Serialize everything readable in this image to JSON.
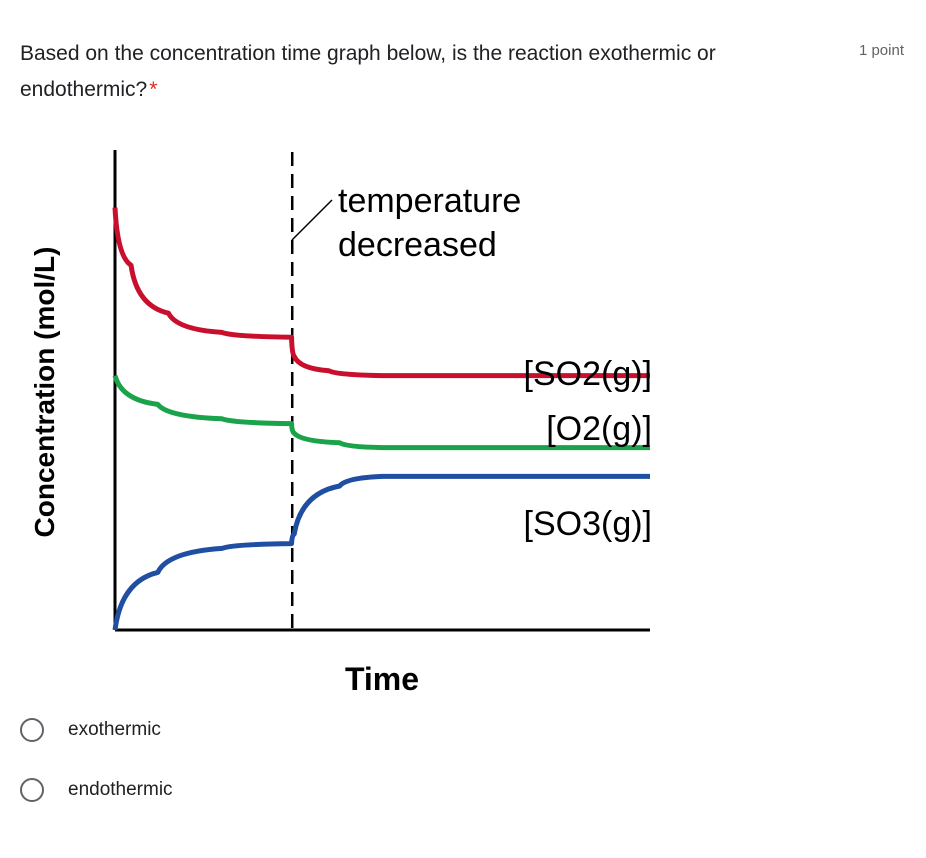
{
  "question": {
    "text": "Based on the concentration time graph below, is the reaction exothermic or endothermic?",
    "required_mark": "*",
    "points": "1 point"
  },
  "options": [
    {
      "label": "exothermic"
    },
    {
      "label": "endothermic"
    }
  ],
  "chart_data": {
    "type": "line",
    "ylabel": "Concentration (mol/L)",
    "xlabel": "Time",
    "annotation": {
      "line1": "temperature",
      "line2": "decreased"
    },
    "series": [
      {
        "name": "[SO2(g)]",
        "color": "#c8102e",
        "points": [
          [
            0,
            0.88
          ],
          [
            0.03,
            0.76
          ],
          [
            0.1,
            0.66
          ],
          [
            0.2,
            0.62
          ],
          [
            0.33,
            0.61
          ],
          [
            0.335,
            0.57
          ],
          [
            0.4,
            0.54
          ],
          [
            0.5,
            0.53
          ],
          [
            1,
            0.53
          ]
        ]
      },
      {
        "name": "[O2(g)]",
        "color": "#1aa34a",
        "points": [
          [
            0,
            0.53
          ],
          [
            0.08,
            0.47
          ],
          [
            0.2,
            0.44
          ],
          [
            0.33,
            0.43
          ],
          [
            0.335,
            0.41
          ],
          [
            0.42,
            0.39
          ],
          [
            0.5,
            0.38
          ],
          [
            1,
            0.38
          ]
        ]
      },
      {
        "name": "[SO3(g)]",
        "color": "#1f4ea3",
        "points": [
          [
            0,
            0
          ],
          [
            0.08,
            0.12
          ],
          [
            0.2,
            0.17
          ],
          [
            0.33,
            0.18
          ],
          [
            0.335,
            0.2
          ],
          [
            0.42,
            0.3
          ],
          [
            0.5,
            0.32
          ],
          [
            1,
            0.32
          ]
        ]
      }
    ],
    "event_x": 0.335
  }
}
